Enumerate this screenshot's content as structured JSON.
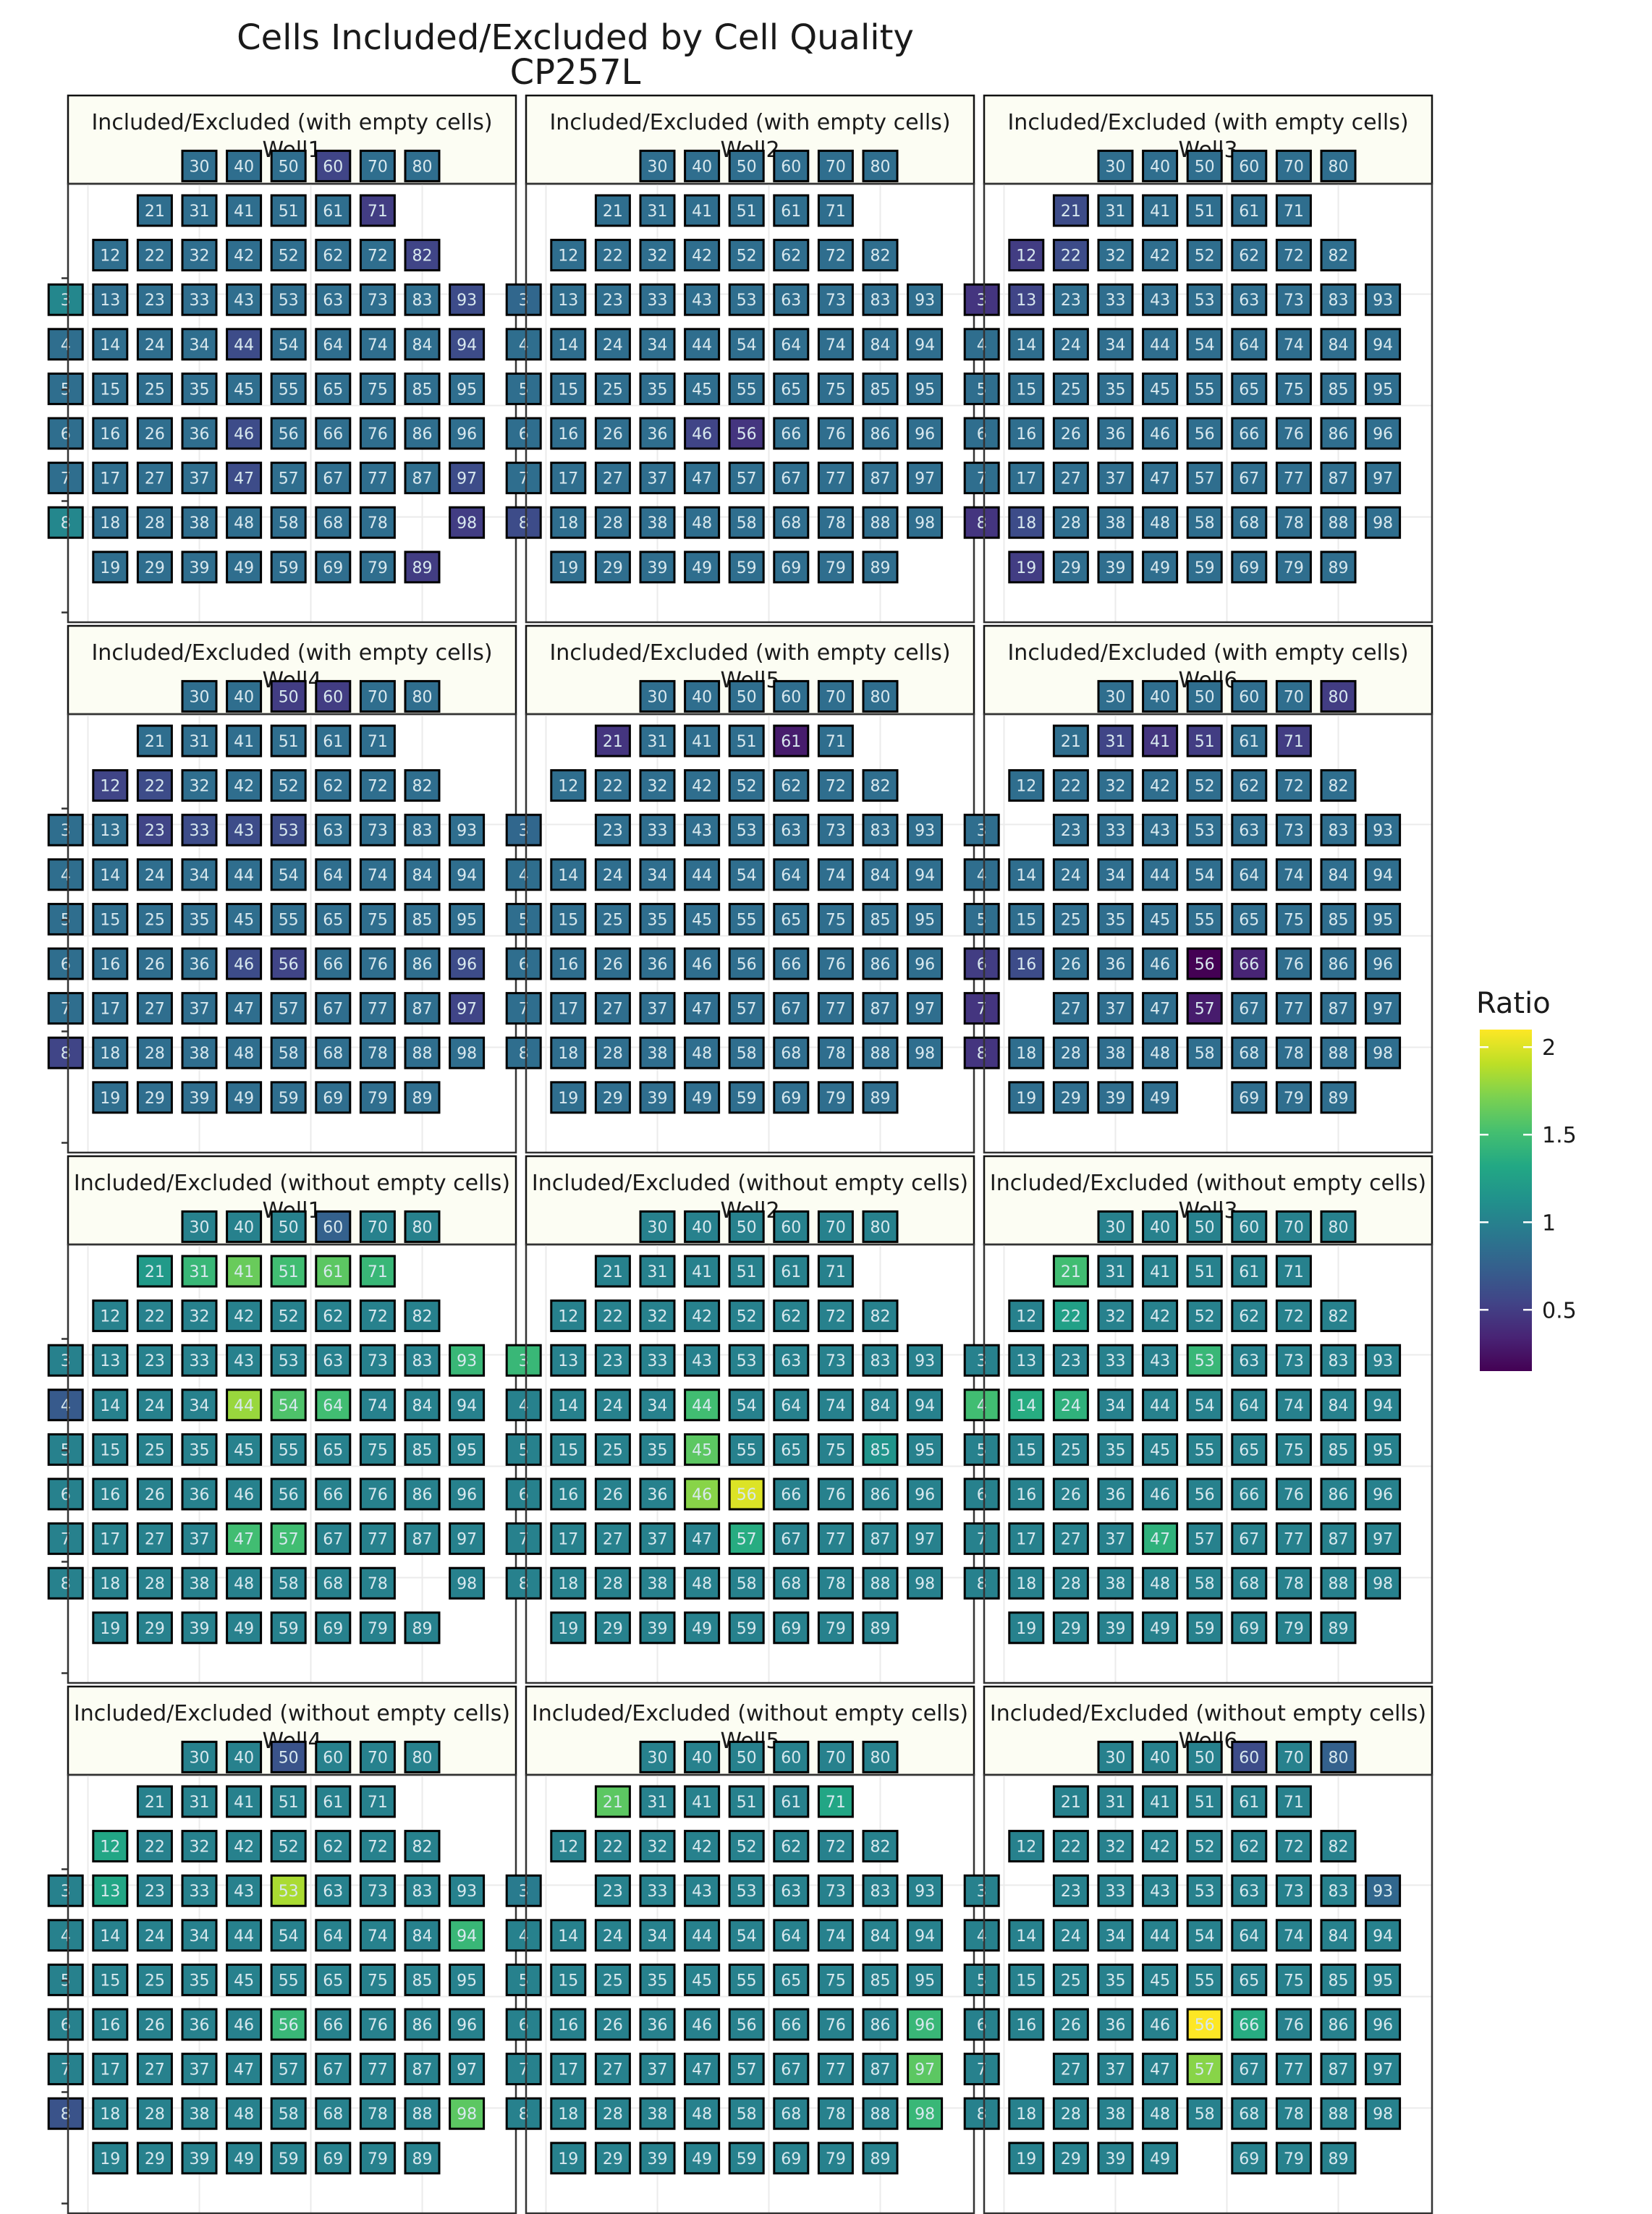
{
  "chart_data": {
    "type": "heatmap",
    "title": "Cells Included/Excluded by Cell Quality",
    "subtitle": "CP257L",
    "legend": {
      "title": "Ratio",
      "ticks": [
        "0.5",
        "1",
        "1.5",
        "2"
      ],
      "tick_values": [
        0.5,
        1,
        1.5,
        2
      ],
      "range": [
        0.15,
        2.1
      ],
      "colors": [
        "#440154",
        "#482475",
        "#414487",
        "#355f8d",
        "#2a788e",
        "#21918c",
        "#22a884",
        "#44bf70",
        "#7ad151",
        "#bddf26",
        "#fde725"
      ],
      "placement": "right"
    },
    "cells": [
      21,
      31,
      41,
      51,
      61,
      71,
      12,
      22,
      32,
      42,
      52,
      62,
      72,
      82,
      3,
      13,
      23,
      33,
      43,
      53,
      63,
      73,
      83,
      93,
      4,
      14,
      24,
      34,
      44,
      54,
      64,
      74,
      84,
      94,
      5,
      15,
      25,
      35,
      45,
      55,
      65,
      75,
      85,
      95,
      6,
      16,
      26,
      36,
      46,
      56,
      66,
      76,
      86,
      96,
      7,
      17,
      27,
      37,
      47,
      57,
      67,
      77,
      87,
      97,
      8,
      18,
      28,
      38,
      48,
      58,
      68,
      78,
      88,
      98,
      19,
      29,
      39,
      49,
      59,
      69,
      79,
      89,
      30,
      40,
      50,
      60,
      70,
      80
    ],
    "default_values": [
      0.85,
      0.85,
      1.0,
      1.0
    ],
    "panels": [
      {
        "strip": "Included/Excluded (with empty cells)",
        "well": "Well1",
        "missing": [
          88
        ],
        "values": {
          "71": 0.5,
          "82": 0.55,
          "93": 0.6,
          "94": 0.6,
          "44": 0.6,
          "46": 0.6,
          "47": 0.6,
          "97": 0.6,
          "98": 0.5,
          "89": 0.5,
          "60": 0.55,
          "3": 1.05,
          "8": 1.05
        }
      },
      {
        "strip": "Included/Excluded (with empty cells)",
        "well": "Well2",
        "missing": [],
        "values": {
          "46": 0.55,
          "56": 0.45,
          "3": 0.8,
          "8": 0.6
        }
      },
      {
        "strip": "Included/Excluded (with empty cells)",
        "well": "Well3",
        "missing": [],
        "values": {
          "21": 0.6,
          "12": 0.5,
          "22": 0.6,
          "3": 0.45,
          "13": 0.55,
          "8": 0.45,
          "18": 0.6,
          "19": 0.5
        }
      },
      {
        "strip": "Included/Excluded (with empty cells)",
        "well": "Well4",
        "missing": [],
        "values": {
          "12": 0.55,
          "22": 0.6,
          "23": 0.55,
          "33": 0.6,
          "43": 0.6,
          "53": 0.6,
          "46": 0.6,
          "56": 0.55,
          "96": 0.6,
          "97": 0.55,
          "8": 0.55,
          "50": 0.5,
          "60": 0.5
        }
      },
      {
        "strip": "Included/Excluded (with empty cells)",
        "well": "Well5",
        "missing": [
          13
        ],
        "values": {
          "21": 0.45,
          "61": 0.3,
          "3": 0.8
        }
      },
      {
        "strip": "Included/Excluded (with empty cells)",
        "well": "Well6",
        "missing": [
          13,
          17,
          59
        ],
        "values": {
          "31": 0.55,
          "41": 0.45,
          "51": 0.5,
          "71": 0.5,
          "6": 0.5,
          "16": 0.6,
          "56": 0.15,
          "66": 0.35,
          "7": 0.45,
          "57": 0.3,
          "8": 0.45,
          "80": 0.5
        }
      },
      {
        "strip": "Included/Excluded (without empty cells)",
        "well": "Well1",
        "missing": [
          88
        ],
        "values": {
          "21": 1.2,
          "31": 1.45,
          "41": 1.65,
          "51": 1.5,
          "61": 1.6,
          "71": 1.45,
          "93": 1.45,
          "44": 1.8,
          "54": 1.55,
          "64": 1.5,
          "47": 1.5,
          "57": 1.5,
          "60": 0.75,
          "4": 0.7
        }
      },
      {
        "strip": "Included/Excluded (without empty cells)",
        "well": "Well2",
        "missing": [],
        "values": {
          "3": 1.45,
          "44": 1.5,
          "45": 1.6,
          "46": 1.75,
          "56": 2.0,
          "57": 1.35,
          "85": 1.15
        }
      },
      {
        "strip": "Included/Excluded (without empty cells)",
        "well": "Well3",
        "missing": [],
        "values": {
          "21": 1.5,
          "22": 1.25,
          "53": 1.45,
          "4": 1.5,
          "14": 1.35,
          "24": 1.4,
          "47": 1.4
        }
      },
      {
        "strip": "Included/Excluded (without empty cells)",
        "well": "Well4",
        "missing": [],
        "values": {
          "12": 1.3,
          "13": 1.3,
          "53": 1.85,
          "94": 1.45,
          "56": 1.45,
          "98": 1.6,
          "8": 0.65,
          "50": 0.65
        }
      },
      {
        "strip": "Included/Excluded (without empty cells)",
        "well": "Well5",
        "missing": [
          13
        ],
        "values": {
          "21": 1.6,
          "71": 1.3,
          "96": 1.45,
          "97": 1.6,
          "98": 1.45,
          "3": 0.95
        }
      },
      {
        "strip": "Included/Excluded (without empty cells)",
        "well": "Well6",
        "missing": [
          13,
          17,
          59
        ],
        "values": {
          "56": 2.1,
          "57": 1.75,
          "66": 1.35,
          "93": 0.8,
          "60": 0.6,
          "80": 0.75
        }
      }
    ]
  }
}
